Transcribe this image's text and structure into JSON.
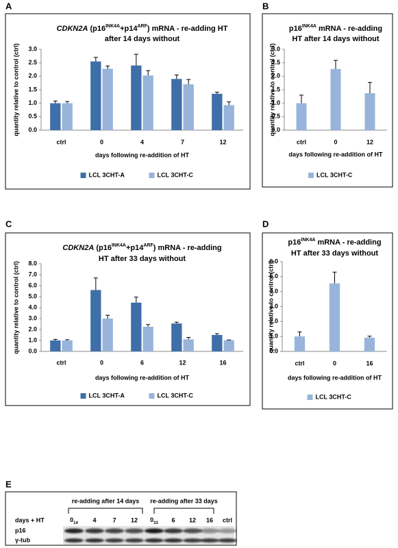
{
  "chart_data": [
    {
      "type": "bar",
      "panel": "A",
      "title": [
        [
          {
            "text": "CDKN2A",
            "italic": true
          },
          " (p16",
          {
            "text": "INK4A",
            "sup": true
          },
          "+p14",
          {
            "text": "ARF",
            "sup": true
          },
          ")  mRNA - re-adding HT"
        ],
        [
          "after 14 days without"
        ]
      ],
      "ylabel": "quantity relative to control (ctrl)",
      "xlabel": "days following re-addition of HT",
      "categories": [
        "ctrl",
        "0",
        "4",
        "7",
        "12"
      ],
      "ylim": [
        0,
        3
      ],
      "yticks": [
        {
          "value": 0,
          "label": "0.0"
        },
        {
          "value": 0.5,
          "label": "0.5"
        },
        {
          "value": 1,
          "label": "1.0"
        },
        {
          "value": 1.5,
          "label": "1.5"
        },
        {
          "value": 2,
          "label": "2.0"
        },
        {
          "value": 2.5,
          "label": "2.5"
        },
        {
          "value": 3,
          "label": "3.0"
        }
      ],
      "series": [
        {
          "name": "LCL 3CHT-A",
          "color": "#3f6fa9",
          "values": [
            1.0,
            2.55,
            2.4,
            1.9,
            1.35
          ],
          "errors": [
            0.08,
            0.15,
            0.42,
            0.15,
            0.06
          ]
        },
        {
          "name": "LCL 3CHT-C",
          "color": "#98b4da",
          "values": [
            1.0,
            2.28,
            2.03,
            1.7,
            0.93
          ],
          "errors": [
            0.06,
            0.1,
            0.18,
            0.18,
            0.12
          ]
        }
      ]
    },
    {
      "type": "bar",
      "panel": "B",
      "title": [
        [
          "p16",
          {
            "text": "INK4A",
            "sup": true
          },
          " mRNA - re-adding"
        ],
        [
          "HT after 14 days without"
        ]
      ],
      "ylabel": "quantity relative to control (ctrl)",
      "xlabel": "days following re-addition of HT",
      "categories": [
        "ctrl",
        "0",
        "12"
      ],
      "ylim": [
        0,
        3
      ],
      "yticks": [
        {
          "value": 0,
          "label": "0.0"
        },
        {
          "value": 0.5,
          "label": "0.5"
        },
        {
          "value": 1,
          "label": "1.0"
        },
        {
          "value": 1.5,
          "label": "1.5"
        },
        {
          "value": 2,
          "label": "2.0"
        },
        {
          "value": 2.5,
          "label": "2.5"
        },
        {
          "value": 3,
          "label": "3.0"
        }
      ],
      "series": [
        {
          "name": "LCL 3CHT-C",
          "color": "#98b4da",
          "values": [
            1.0,
            2.27,
            1.37
          ],
          "errors": [
            0.3,
            0.32,
            0.4
          ]
        }
      ]
    },
    {
      "type": "bar",
      "panel": "C",
      "title": [
        [
          {
            "text": "CDKN2A",
            "italic": true
          },
          " (p16",
          {
            "text": "INK4A",
            "sup": true
          },
          "+p14",
          {
            "text": "ARF",
            "sup": true
          },
          ")  mRNA -  re-adding"
        ],
        [
          "HT after 33 days without"
        ]
      ],
      "ylabel": "quantity relative to control (ctrl)",
      "xlabel": "days following re-addition of HT",
      "categories": [
        "ctrl",
        "0",
        "6",
        "12",
        "16"
      ],
      "ylim": [
        0,
        8
      ],
      "yticks": [
        {
          "value": 0,
          "label": "0.0"
        },
        {
          "value": 1,
          "label": "1.0"
        },
        {
          "value": 2,
          "label": "2.0"
        },
        {
          "value": 3,
          "label": "3.0"
        },
        {
          "value": 4,
          "label": "4.0"
        },
        {
          "value": 5,
          "label": "5.0"
        },
        {
          "value": 6,
          "label": "6.0"
        },
        {
          "value": 7,
          "label": "7.0"
        },
        {
          "value": 8,
          "label": "8.0"
        }
      ],
      "series": [
        {
          "name": "LCL 3CHT-A",
          "color": "#3f6fa9",
          "values": [
            1.0,
            5.6,
            4.45,
            2.55,
            1.5
          ],
          "errors": [
            0.1,
            1.1,
            0.5,
            0.12,
            0.12
          ]
        },
        {
          "name": "LCL 3CHT-C",
          "color": "#98b4da",
          "values": [
            1.0,
            3.0,
            2.25,
            1.1,
            1.02
          ],
          "errors": [
            0.07,
            0.3,
            0.2,
            0.18,
            0.03
          ]
        }
      ]
    },
    {
      "type": "bar",
      "panel": "D",
      "title": [
        [
          "p16",
          {
            "text": "INK4A",
            "sup": true
          },
          " mRNA - re-adding"
        ],
        [
          "HT after 33 days without"
        ]
      ],
      "ylabel": "quantity relative to control (ctrl)",
      "xlabel": "days following re-addition of HT",
      "categories": [
        "ctrl",
        "0",
        "16"
      ],
      "ylim": [
        0,
        6
      ],
      "yticks": [
        {
          "value": 0,
          "label": "0.0"
        },
        {
          "value": 1,
          "label": "1.0"
        },
        {
          "value": 2,
          "label": "2.0"
        },
        {
          "value": 3,
          "label": "3.0"
        },
        {
          "value": 4,
          "label": "4.0"
        },
        {
          "value": 5,
          "label": "5.0"
        },
        {
          "value": 6,
          "label": "6.0"
        }
      ],
      "series": [
        {
          "name": "LCL 3CHT-C",
          "color": "#98b4da",
          "values": [
            1.0,
            4.55,
            0.92
          ],
          "errors": [
            0.3,
            0.75,
            0.1
          ]
        }
      ]
    }
  ],
  "blot": {
    "panel": "E",
    "groups": [
      "re-adding after 14 days",
      "re-adding after 33 days"
    ],
    "row_title": "days + HT",
    "lanes": [
      {
        "text": "0",
        "sub": "14"
      },
      "4",
      "7",
      "12",
      {
        "text": "0",
        "sub": "33"
      },
      "6",
      "12",
      "16",
      "ctrl"
    ],
    "rows": [
      "p16",
      "γ-tub"
    ]
  }
}
